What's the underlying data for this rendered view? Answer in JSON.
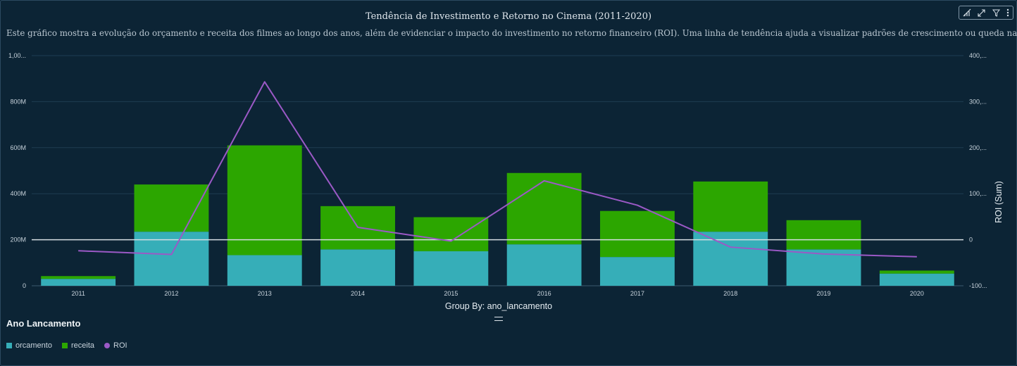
{
  "header": {
    "title": "Tendência de Investimento e Retorno no Cinema (2011-2020)",
    "subtitle": "Este gráfico mostra a evolução do orçamento e receita dos filmes ao longo dos anos, além de evidenciar o impacto do investimento no retorno financeiro (ROI). Uma linha de tendência ajuda a visualizar padrões de crescimento ou queda na indústria."
  },
  "toolbar": {
    "icons": [
      "chart-type-icon",
      "expand-icon",
      "filter-icon",
      "more-options-icon"
    ]
  },
  "chart_data": {
    "type": "bar",
    "stacked": true,
    "categories": [
      "2011",
      "2012",
      "2013",
      "2014",
      "2015",
      "2016",
      "2017",
      "2018",
      "2019",
      "2020"
    ],
    "series": [
      {
        "name": "orcamento",
        "type": "bar",
        "axis": "left",
        "color": "#36aeb8",
        "values": [
          30000000,
          235000000,
          133000000,
          158000000,
          150000000,
          180000000,
          125000000,
          235000000,
          158000000,
          53000000
        ]
      },
      {
        "name": "receita",
        "type": "bar",
        "axis": "left",
        "color": "#2ca600",
        "values": [
          12000000,
          205000000,
          477000000,
          188000000,
          148000000,
          310000000,
          200000000,
          218000000,
          127000000,
          13000000
        ]
      },
      {
        "name": "ROI",
        "type": "line",
        "axis": "right",
        "color": "#9b59c6",
        "values": [
          -24,
          -32,
          343,
          27,
          -3,
          128,
          75,
          -16,
          -31,
          -37
        ]
      }
    ],
    "y_left": {
      "min": 0,
      "max": 1000000000,
      "ticks": [
        "0",
        "200M",
        "400M",
        "600M",
        "800M",
        "1,00..."
      ]
    },
    "y_right": {
      "min": -100,
      "max": 400,
      "ticks": [
        "-100...",
        "0",
        "100,...",
        "200,...",
        "300,...",
        "400,..."
      ],
      "label": "ROI (Sum)"
    },
    "xlabel": "Group By: ano_lancamento",
    "grid": true,
    "legend_position": "bottom-left"
  },
  "legend": {
    "title": "Ano Lancamento",
    "items": [
      {
        "label": "orcamento",
        "color": "#36aeb8",
        "shape": "square"
      },
      {
        "label": "receita",
        "color": "#2ca600",
        "shape": "square"
      },
      {
        "label": "ROI",
        "color": "#9b59c6",
        "shape": "circle"
      }
    ]
  }
}
